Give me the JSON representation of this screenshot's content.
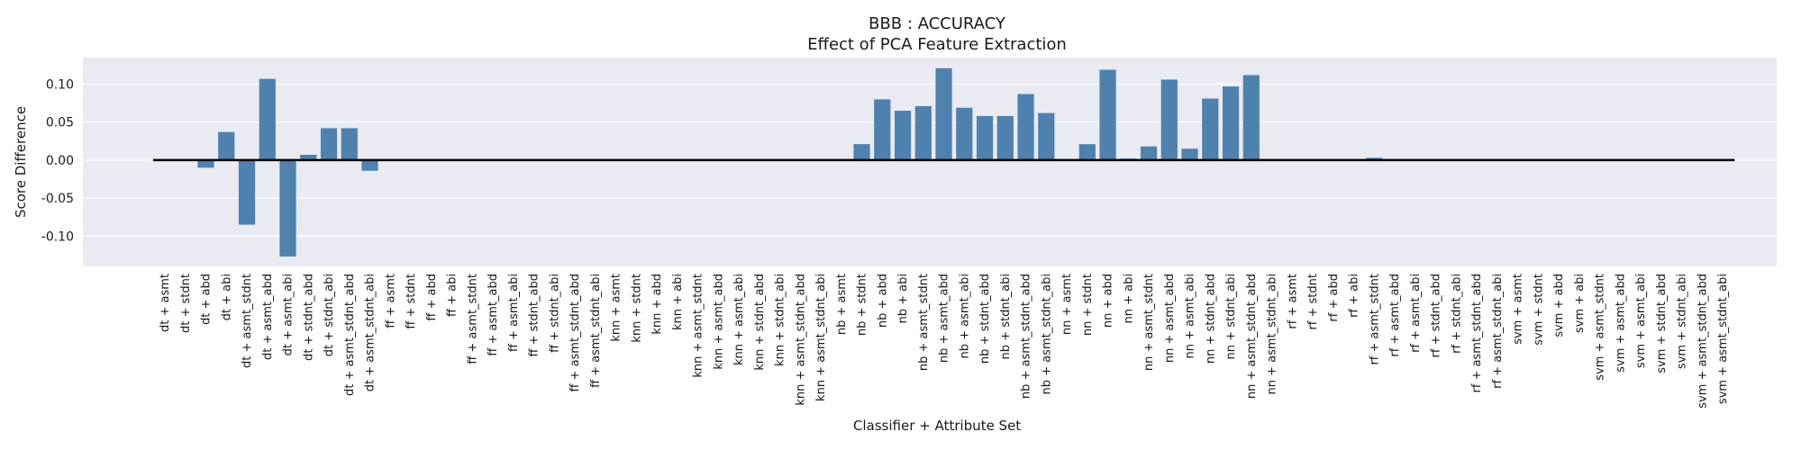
{
  "chart_data": {
    "type": "bar",
    "title": "BBB : ACCURACY",
    "subtitle": "Effect of PCA Feature Extraction",
    "xlabel": "Classifier + Attribute Set",
    "ylabel": "Score Difference",
    "ylim": [
      -0.14,
      0.135
    ],
    "yticks": [
      "0.10",
      "0.05",
      "0.00",
      "-0.05",
      "-0.10"
    ],
    "grid": true,
    "bar_color": "#4f81ae",
    "zero_line_color": "#000000",
    "background_color": "#eaeaf2",
    "categories": [
      "dt + asmt",
      "dt + stdnt",
      "dt + abd",
      "dt + abi",
      "dt + asmt_stdnt",
      "dt + asmt_abd",
      "dt + asmt_abi",
      "dt + stdnt_abd",
      "dt + stdnt_abi",
      "dt + asmt_stdnt_abd",
      "dt + asmt_stdnt_abi",
      "ff + asmt",
      "ff + stdnt",
      "ff + abd",
      "ff + abi",
      "ff + asmt_stdnt",
      "ff + asmt_abd",
      "ff + asmt_abi",
      "ff + stdnt_abd",
      "ff + stdnt_abi",
      "ff + asmt_stdnt_abd",
      "ff + asmt_stdnt_abi",
      "knn + asmt",
      "knn + stdnt",
      "knn + abd",
      "knn + abi",
      "knn + asmt_stdnt",
      "knn + asmt_abd",
      "knn + asmt_abi",
      "knn + stdnt_abd",
      "knn + stdnt_abi",
      "knn + asmt_stdnt_abd",
      "knn + asmt_stdnt_abi",
      "nb + asmt",
      "nb + stdnt",
      "nb + abd",
      "nb + abi",
      "nb + asmt_stdnt",
      "nb + asmt_abd",
      "nb + asmt_abi",
      "nb + stdnt_abd",
      "nb + stdnt_abi",
      "nb + asmt_stdnt_abd",
      "nb + asmt_stdnt_abi",
      "nn + asmt",
      "nn + stdnt",
      "nn + abd",
      "nn + abi",
      "nn + asmt_stdnt",
      "nn + asmt_abd",
      "nn + asmt_abi",
      "nn + stdnt_abd",
      "nn + stdnt_abi",
      "nn + asmt_stdnt_abd",
      "nn + asmt_stdnt_abi",
      "rf + asmt",
      "rf + stdnt",
      "rf + abd",
      "rf + abi",
      "rf + asmt_stdnt",
      "rf + asmt_abd",
      "rf + asmt_abi",
      "rf + stdnt_abd",
      "rf + stdnt_abi",
      "rf + asmt_stdnt_abd",
      "rf + asmt_stdnt_abi",
      "svm + asmt",
      "svm + stdnt",
      "svm + abd",
      "svm + abi",
      "svm + asmt_stdnt",
      "svm + asmt_abd",
      "svm + asmt_abi",
      "svm + stdnt_abd",
      "svm + stdnt_abi",
      "svm + asmt_stdnt_abd",
      "svm + asmt_stdnt_abi"
    ],
    "values": [
      0,
      0,
      -0.01,
      0.037,
      -0.085,
      0.107,
      -0.127,
      0.007,
      0.042,
      0.042,
      -0.014,
      0,
      0,
      0,
      0,
      0,
      0,
      0,
      0,
      0,
      0,
      0,
      0,
      0,
      0,
      0,
      0,
      0,
      0,
      0,
      0,
      0,
      0,
      0,
      0.021,
      0.08,
      0.065,
      0.071,
      0.121,
      0.069,
      0.058,
      0.058,
      0.087,
      0.062,
      0,
      0.021,
      0.119,
      0.002,
      0.018,
      0.106,
      0.015,
      0.081,
      0.097,
      0.112,
      0,
      0,
      0,
      0,
      0,
      0.003,
      0,
      0,
      0,
      0,
      0,
      0,
      0,
      0,
      0,
      0,
      0,
      0,
      0,
      0,
      0,
      0,
      0
    ]
  }
}
